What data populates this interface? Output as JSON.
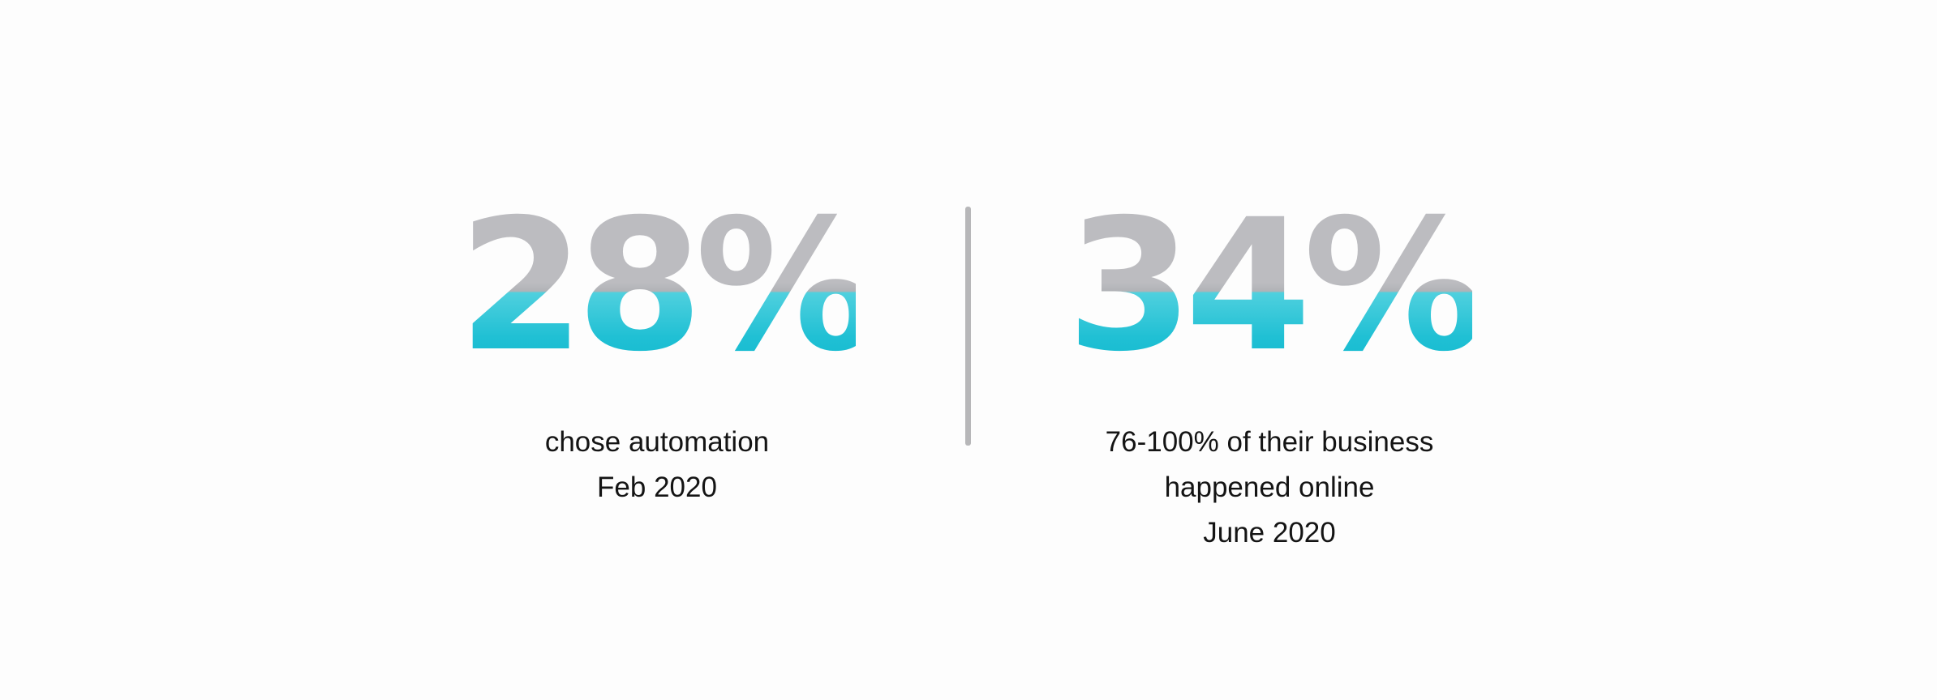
{
  "stats": [
    {
      "value": "28%",
      "caption_lines": [
        "chose automation",
        "Feb 2020"
      ]
    },
    {
      "value": "34%",
      "caption_lines": [
        "76-100% of their business",
        "happened online",
        "June 2020"
      ]
    }
  ],
  "colors": {
    "figure_top": "#bcbcc0",
    "figure_bottom": "#12b9cf",
    "divider": "#b7b7b9",
    "caption_text": "#141414",
    "background": "#fdfdfd"
  }
}
